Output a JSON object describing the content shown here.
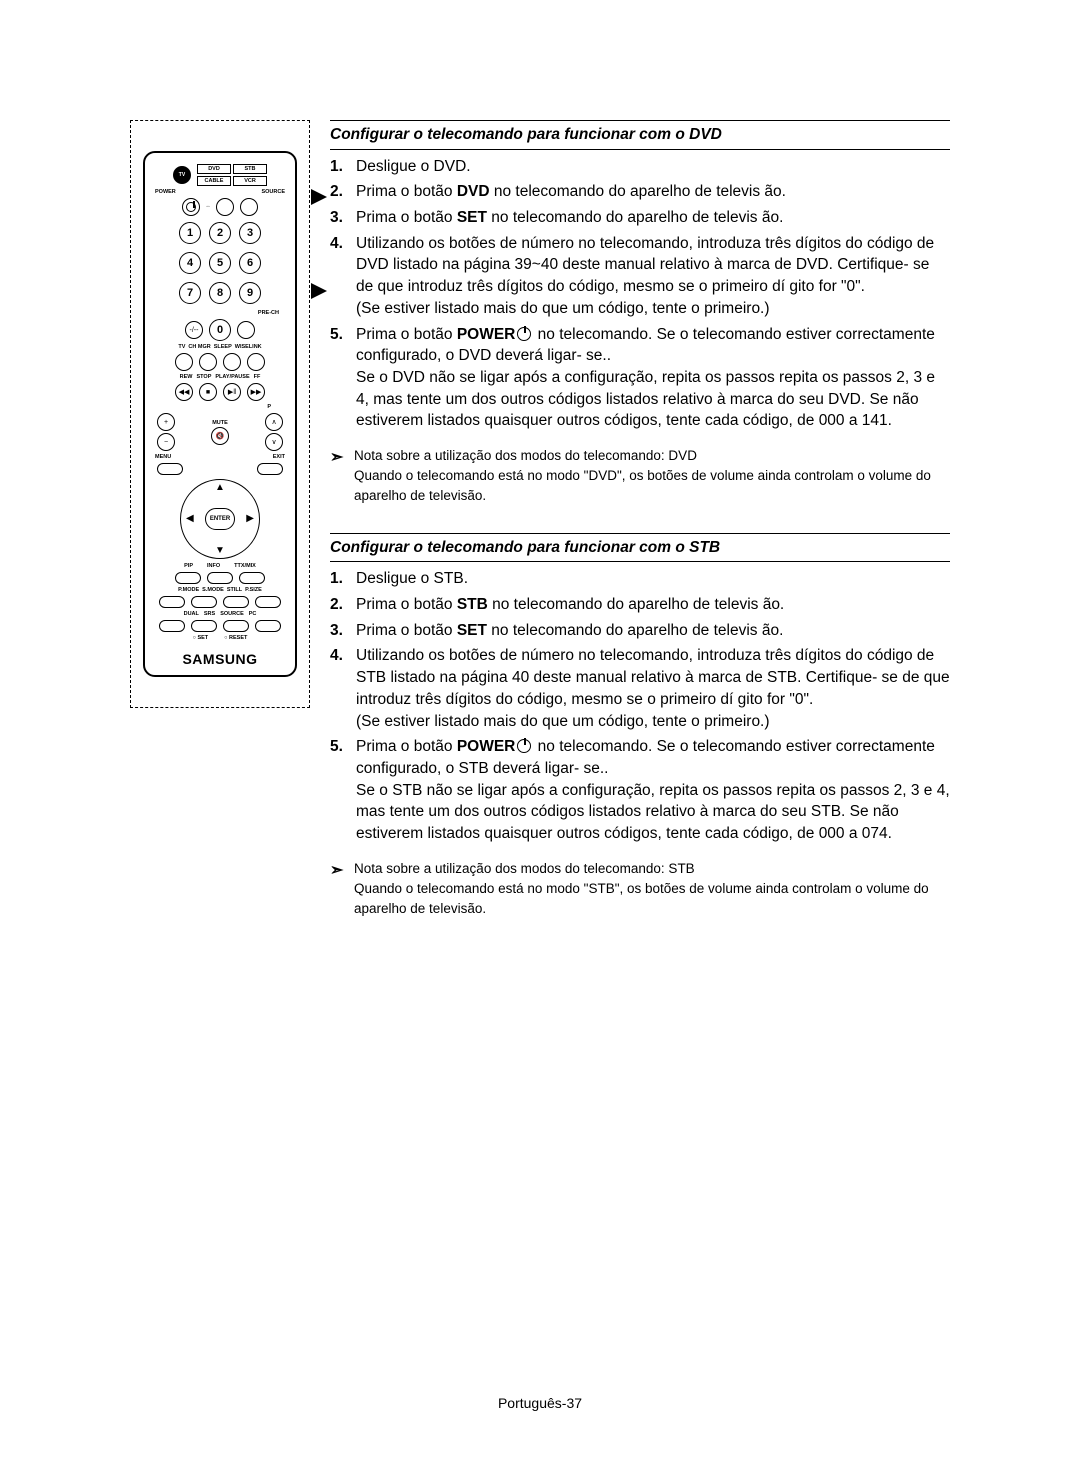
{
  "footer": "Português-37",
  "remote": {
    "mode_buttons": [
      "DVD",
      "STB",
      "CABLE",
      "VCR"
    ],
    "tv_label": "TV",
    "power_label": "POWER",
    "source_label": "SOURCE",
    "numbers": [
      "1",
      "2",
      "3",
      "4",
      "5",
      "6",
      "7",
      "8",
      "9",
      "0"
    ],
    "prech_label": "PRE-CH",
    "row_labels_1": [
      "TV",
      "CH MGR",
      "SLEEP",
      "WISELINK"
    ],
    "row_labels_2": [
      "REW",
      "STOP",
      "PLAY/PAUSE",
      "FF"
    ],
    "p_label": "P",
    "mute_label": "MUTE",
    "menu_label": "MENU",
    "exit_label": "EXIT",
    "enter_label": "ENTER",
    "row_labels_3": [
      "PIP",
      "INFO",
      "TTX/MIX"
    ],
    "row_labels_4": [
      "P.MODE",
      "S.MODE",
      "STILL",
      "P.SIZE"
    ],
    "row_labels_5": [
      "DUAL",
      "SRS",
      "SOURCE",
      "PC"
    ],
    "set_reset": [
      "SET",
      "RESET"
    ],
    "brand": "SAMSUNG"
  },
  "sections": [
    {
      "heading": "Configurar o telecomando para funcionar com o DVD",
      "steps": [
        {
          "n": "1.",
          "html": "Desligue o DVD."
        },
        {
          "n": "2.",
          "html": "Prima o botão <b>DVD</b> no telecomando do aparelho de televis ão."
        },
        {
          "n": "3.",
          "html": "Prima o botão <b>SET</b> no telecomando do aparelho de televis ão."
        },
        {
          "n": "4.",
          "html": "Utilizando os botões de número no telecomando, introduza três dígitos do código de DVD listado na página 39~40 deste manual relativo à marca de DVD. Certifique- se de que introduz três dígitos do código, mesmo se o primeiro dí gito for \"0\".<br>(Se estiver listado mais do que um código, tente o primeiro.)"
        },
        {
          "n": "5.",
          "html": "Prima o botão <b>POWER</b><span class=\"power-icon\"></span> no telecomando. Se o telecomando estiver correctamente configurado, o DVD deverá ligar- se..<br>Se o DVD não se ligar após a configuração, repita os passos repita os passos 2, 3 e 4, mas tente um dos outros códigos listados relativo à marca do seu DVD. Se não estiverem listados quaisquer outros códigos, tente cada código, de 000 a 141."
        }
      ],
      "note": {
        "line1": "Nota sobre a utilização dos modos do telecomando: DVD",
        "line2": "Quando o telecomando está no modo \"DVD\", os botões de volume ainda controlam o volume do aparelho de televisão."
      }
    },
    {
      "heading": "Configurar o telecomando para funcionar com o STB",
      "steps": [
        {
          "n": "1.",
          "html": "Desligue o STB."
        },
        {
          "n": "2.",
          "html": "Prima o botão <b>STB</b> no telecomando do aparelho de televis ão."
        },
        {
          "n": "3.",
          "html": "Prima o botão <b>SET</b> no telecomando do aparelho de televis ão."
        },
        {
          "n": "4.",
          "html": "Utilizando os botões de número no telecomando, introduza três dígitos do código de STB listado na página 40 deste manual relativo à marca de STB. Certifique- se de que introduz três dígitos do código, mesmo se o primeiro dí gito for \"0\".<br>(Se estiver listado mais do que um código, tente o primeiro.)"
        },
        {
          "n": "5.",
          "html": "Prima o botão <b>POWER</b><span class=\"power-icon\"></span> no telecomando. Se o telecomando estiver correctamente configurado, o STB deverá ligar- se..<br>Se o STB não se ligar após a configuração, repita os passos repita os passos 2, 3 e 4, mas tente um dos outros códigos listados relativo à marca do seu STB. Se não estiverem listados quaisquer outros códigos, tente cada código, de 000 a 074."
        }
      ],
      "note": {
        "line1": "Nota sobre a utilização dos modos do telecomando: STB",
        "line2": "Quando o telecomando está no modo \"STB\", os botões de volume ainda controlam o volume do aparelho de televisão."
      }
    }
  ]
}
